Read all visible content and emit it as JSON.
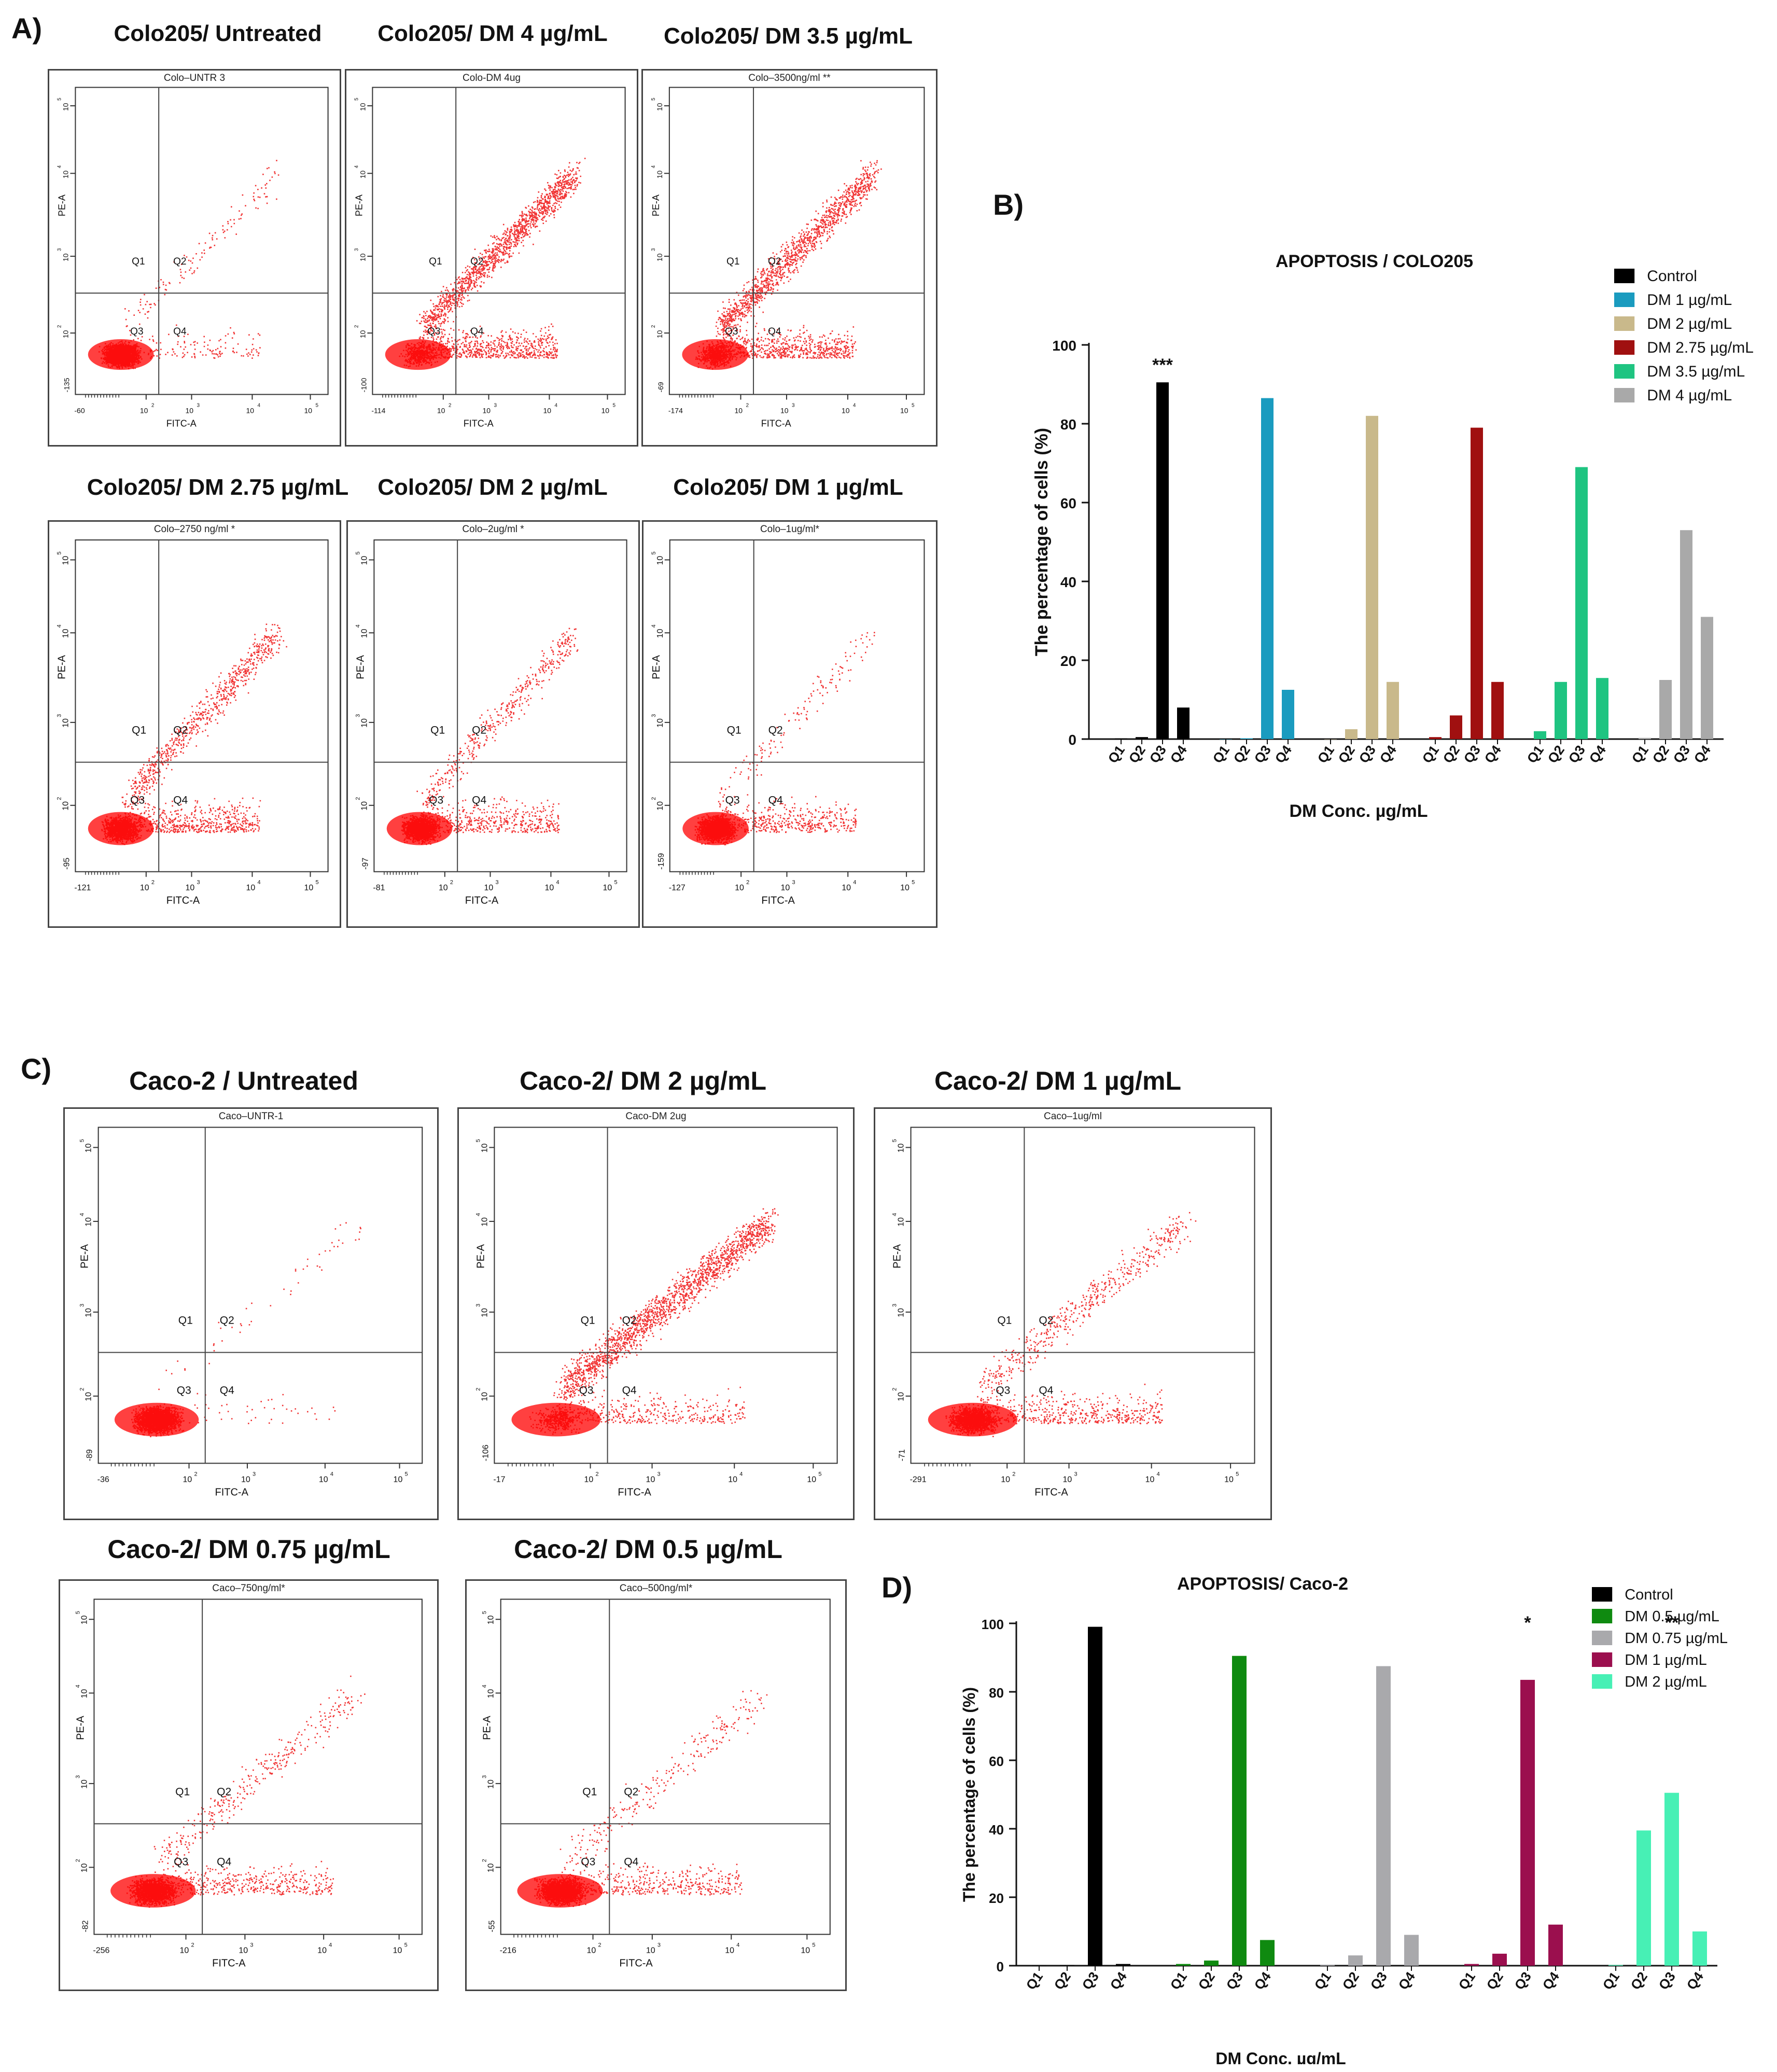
{
  "panel_labels": {
    "a": "A)",
    "b": "B)",
    "c": "C)",
    "d": "D)"
  },
  "flow_colo": [
    {
      "title": "Colo205/ Untreated",
      "subtitle": "Colo–UNTR 3",
      "xmin": "-60",
      "ymin": "-135",
      "spread": 0.12,
      "diag": 0.05
    },
    {
      "title": "Colo205/ DM 4 µg/mL",
      "subtitle": "Colo-DM 4ug",
      "xmin": "-114",
      "ymin": "-100",
      "spread": 0.6,
      "diag": 0.55
    },
    {
      "title": "Colo205/ DM 3.5 µg/mL",
      "subtitle": "Colo–3500ng/ml **",
      "xmin": "-174",
      "ymin": "-69",
      "spread": 0.55,
      "diag": 0.5
    },
    {
      "title": "Colo205/ DM 2.75 µg/mL",
      "subtitle": "Colo–2750 ng/ml *",
      "xmin": "-121",
      "ymin": "-95",
      "spread": 0.45,
      "diag": 0.3
    },
    {
      "title": "Colo205/ DM 2 µg/mL",
      "subtitle": "Colo–2ug/ml *",
      "xmin": "-81",
      "ymin": "-97",
      "spread": 0.4,
      "diag": 0.15
    },
    {
      "title": "Colo205/ DM 1 µg/mL",
      "subtitle": "Colo–1ug/ml*",
      "xmin": "-127",
      "ymin": "-159",
      "spread": 0.35,
      "diag": 0.05
    }
  ],
  "flow_caco": [
    {
      "title": "Caco-2 / Untreated",
      "subtitle": "Caco–UNTR-1",
      "xmin": "-36",
      "ymin": "-89",
      "spread": 0.05,
      "diag": 0.02
    },
    {
      "title": "Caco-2/ DM 2 µg/mL",
      "subtitle": "Caco-DM 2ug",
      "xmin": "-17",
      "ymin": "-106",
      "spread": 0.3,
      "diag": 0.7
    },
    {
      "title": "Caco-2/ DM 1 µg/mL",
      "subtitle": "Caco–1ug/ml",
      "xmin": "-291",
      "ymin": "-71",
      "spread": 0.4,
      "diag": 0.2
    },
    {
      "title": "Caco-2/ DM 0.75 µg/mL",
      "subtitle": "Caco–750ng/ml*",
      "xmin": "-256",
      "ymin": "-82",
      "spread": 0.35,
      "diag": 0.12
    },
    {
      "title": "Caco-2/ DM 0.5 µg/mL",
      "subtitle": "Caco–500ng/ml*",
      "xmin": "-216",
      "ymin": "-55",
      "spread": 0.35,
      "diag": 0.1
    }
  ],
  "flow_labels": {
    "xaxis": "FITC-A",
    "yaxis": "PE-A",
    "q1": "Q1",
    "q2": "Q2",
    "q3": "Q3",
    "q4": "Q4",
    "t2": "10",
    "t3": "10",
    "t4": "10",
    "t5": "10",
    "e2": "2",
    "e3": "3",
    "e4": "4",
    "e5": "5"
  },
  "chart_data": [
    {
      "type": "bar",
      "title": "APOPTOSIS / COLO205",
      "xlabel": "DM Conc. µg/mL",
      "ylabel": "The percentage of cells (%)",
      "ylim": [
        0,
        100
      ],
      "yticks": [
        "0",
        "20",
        "40",
        "60",
        "80",
        "100"
      ],
      "categories": [
        "Q1",
        "Q2",
        "Q3",
        "Q4"
      ],
      "legend_position": "top-right",
      "series": [
        {
          "name": "Control",
          "color": "#000000",
          "values": [
            0.2,
            0.5,
            90.5,
            8
          ],
          "annotation": "***"
        },
        {
          "name": "DM 1 µg/mL",
          "color": "#1a9bbf",
          "values": [
            0,
            0.2,
            86.5,
            12.5
          ]
        },
        {
          "name": "DM 2 µg/mL",
          "color": "#c9b98b",
          "values": [
            0,
            2.5,
            82,
            14.5
          ]
        },
        {
          "name": "DM 2.75  µg/mL",
          "color": "#a01010",
          "values": [
            0.5,
            6,
            79,
            14.5
          ]
        },
        {
          "name": "DM 3.5 µg/mL",
          "color": "#1fc481",
          "values": [
            2,
            14.5,
            69,
            15.5
          ]
        },
        {
          "name": "DM 4 µg/mL",
          "color": "#a9a9a9",
          "values": [
            0.3,
            15,
            53,
            31
          ]
        }
      ]
    },
    {
      "type": "bar",
      "title": "APOPTOSIS/ Caco-2",
      "xlabel": "DM Conc. µg/mL",
      "ylabel": "The percentage of cells (%)",
      "ylim": [
        0,
        100
      ],
      "yticks": [
        "0",
        "20",
        "40",
        "60",
        "80",
        "100"
      ],
      "categories": [
        "Q1",
        "Q2",
        "Q3",
        "Q4"
      ],
      "legend_position": "top-right",
      "series": [
        {
          "name": "Control",
          "color": "#000000",
          "values": [
            0,
            0.2,
            99,
            0.5
          ]
        },
        {
          "name": "DM 0.5 µg/mL",
          "color": "#0f8a10",
          "values": [
            0.5,
            1.5,
            90.5,
            7.5
          ]
        },
        {
          "name": "DM 0.75 µg/mL",
          "color": "#a9a9ac",
          "values": [
            0.3,
            3,
            87.5,
            9
          ]
        },
        {
          "name": "DM 1 µg/mL",
          "color": "#9b0f4e",
          "values": [
            0.5,
            3.5,
            83.5,
            12
          ],
          "annotation": "*"
        },
        {
          "name": "DM 2 µg/mL",
          "color": "#47f0b5",
          "values": [
            0.2,
            39.5,
            50.5,
            10
          ],
          "annotation": "**"
        }
      ]
    }
  ]
}
